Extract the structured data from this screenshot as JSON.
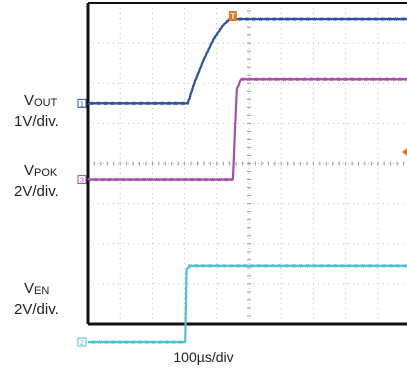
{
  "chart_data": {
    "type": "line",
    "xlabel": "100µs/div",
    "x_unit": "µs",
    "x_range": [
      0,
      1000
    ],
    "grid": true,
    "colors": {
      "frame": "#111111",
      "grid": "#bdbdbd",
      "trigger": "#e07a1f"
    },
    "trigger_marker": {
      "text": "T",
      "x": 450
    },
    "series": [
      {
        "name": "VOUT",
        "label_main": "V",
        "label_sub": "OUT",
        "scale": "1V/div.",
        "marker": "1",
        "color": "#2b52a8",
        "volts_per_div": 1,
        "ground_div": 2.5,
        "points": [
          [
            0,
            0.0
          ],
          [
            310,
            0.0
          ],
          [
            330,
            0.5
          ],
          [
            360,
            1.1
          ],
          [
            390,
            1.6
          ],
          [
            420,
            1.95
          ],
          [
            440,
            2.1
          ],
          [
            1000,
            2.1
          ]
        ]
      },
      {
        "name": "VPOK",
        "label_main": "V",
        "label_sub": "POK",
        "scale": "2V/div.",
        "marker": "3",
        "color": "#a64fa8",
        "volts_per_div": 2,
        "ground_div": 4.4,
        "points": [
          [
            0,
            0.0
          ],
          [
            450,
            0.0
          ],
          [
            462,
            4.5
          ],
          [
            475,
            5.0
          ],
          [
            1000,
            5.0
          ]
        ]
      },
      {
        "name": "VEN",
        "label_main": "V",
        "label_sub": "EN",
        "scale": "2V/div.",
        "marker": "2",
        "color": "#4fc0d0",
        "volts_per_div": 2,
        "ground_div": 8.45,
        "points": [
          [
            0,
            0.0
          ],
          [
            302,
            0.0
          ],
          [
            306,
            3.6
          ],
          [
            315,
            3.8
          ],
          [
            1000,
            3.8
          ]
        ]
      }
    ]
  }
}
